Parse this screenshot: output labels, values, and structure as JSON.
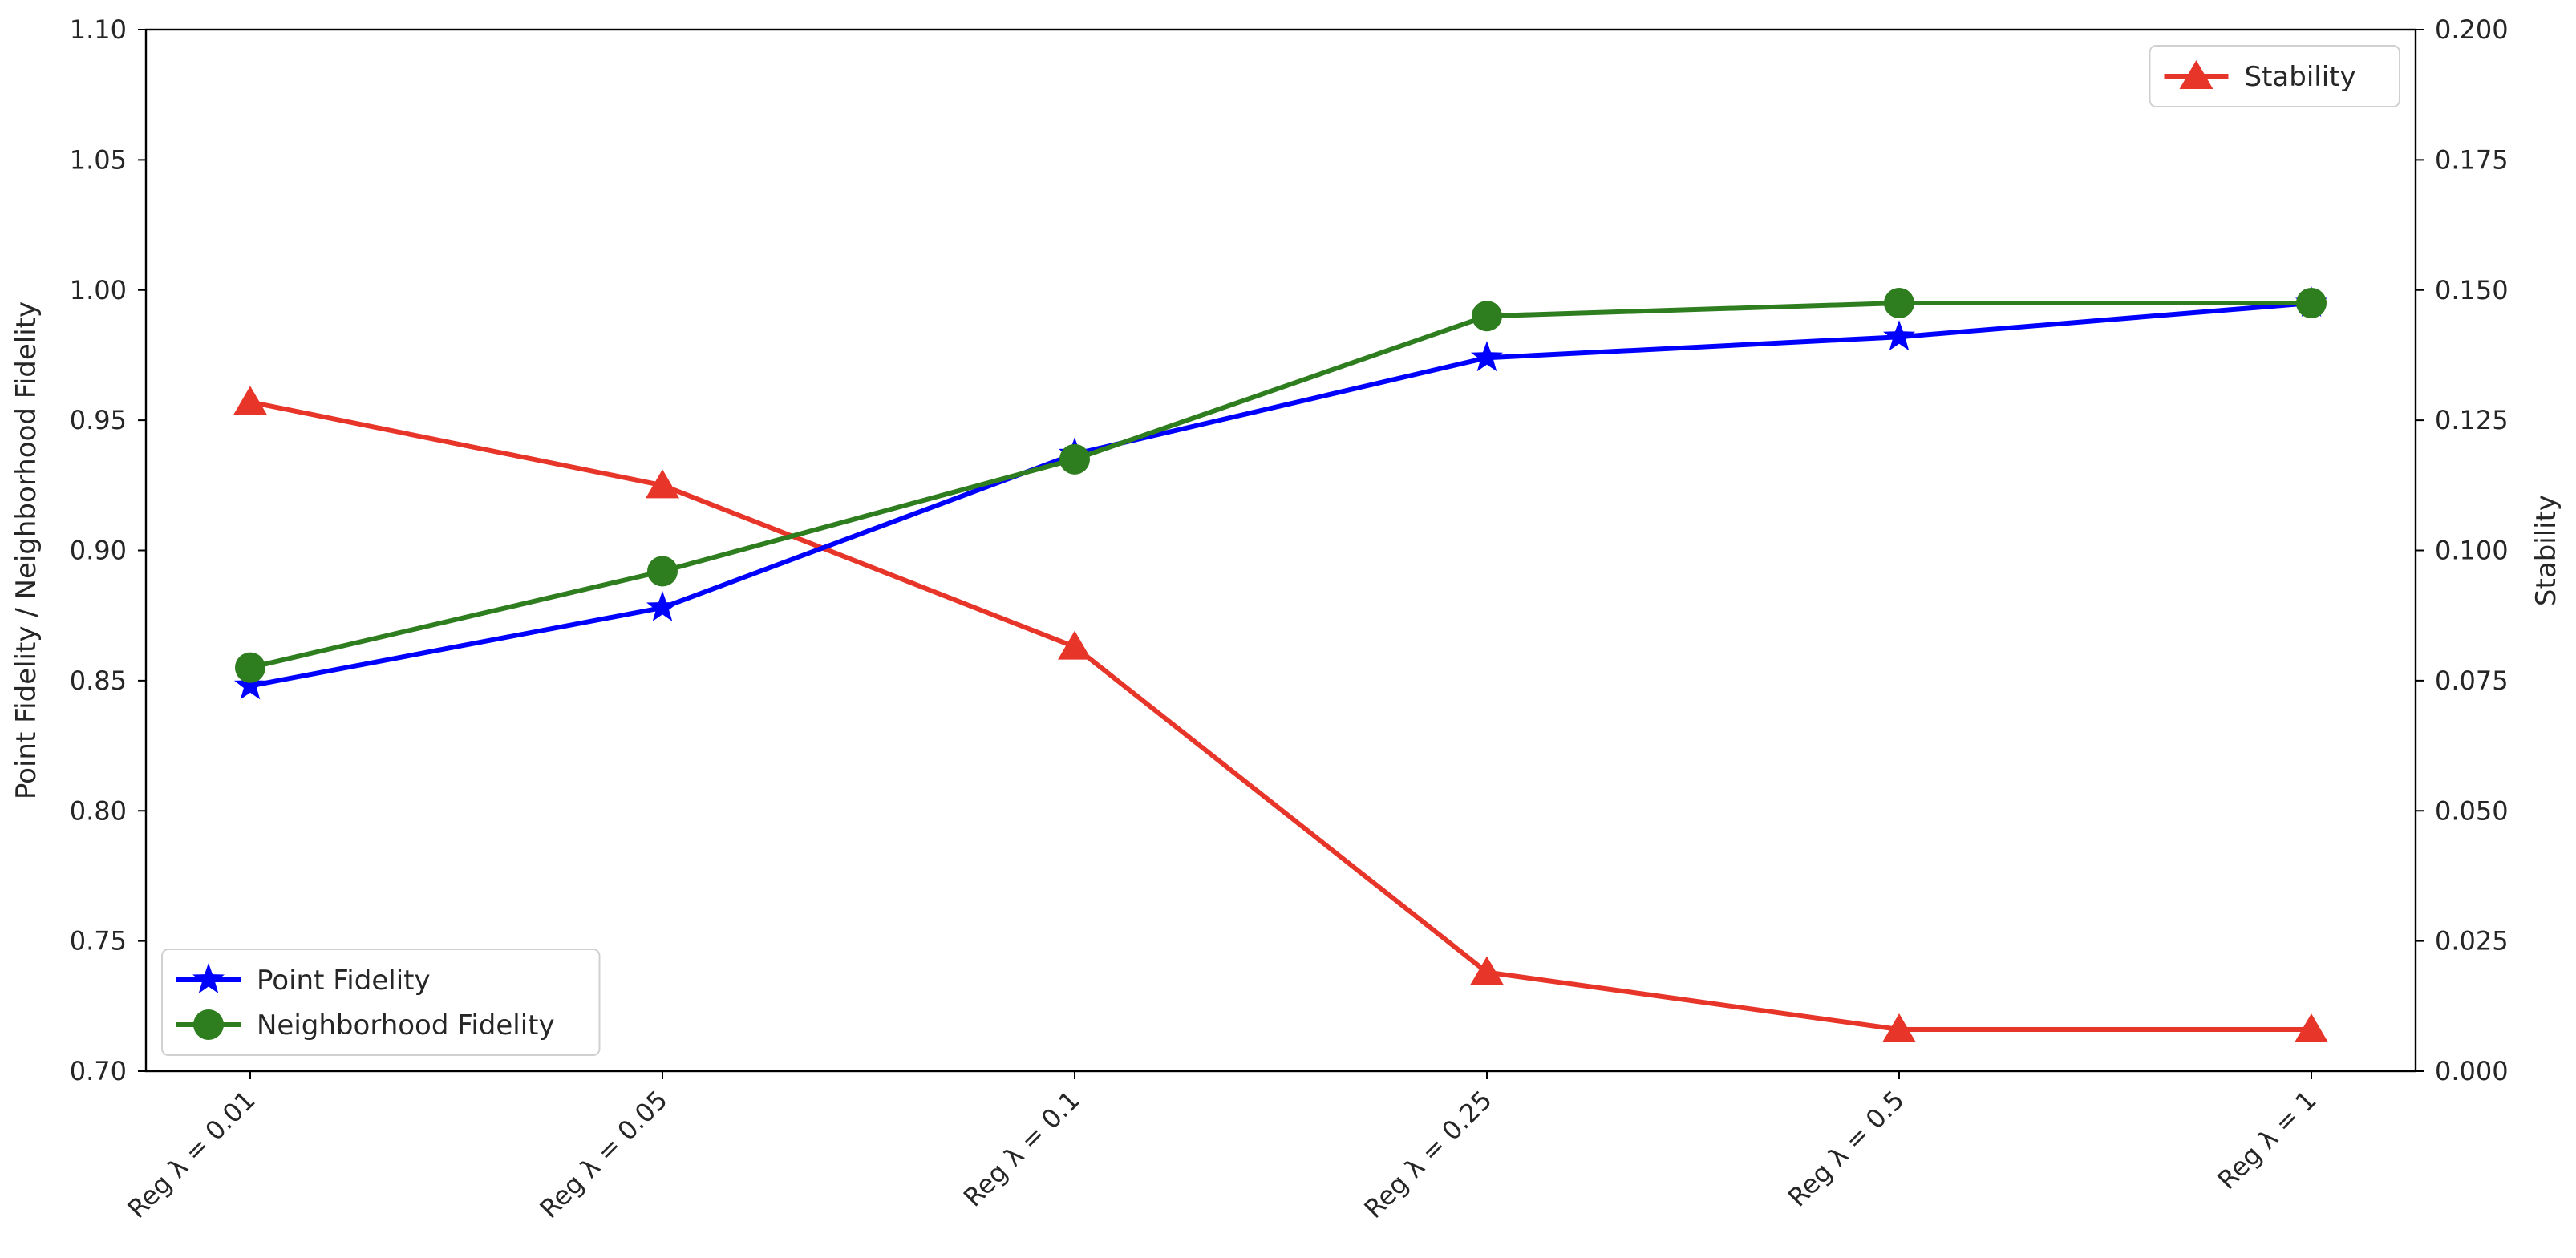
{
  "chart_data": {
    "type": "line",
    "categories": [
      "Reg λ = 0.01",
      "Reg λ = 0.05",
      "Reg λ = 0.1",
      "Reg λ = 0.25",
      "Reg λ = 0.5",
      "Reg λ = 1"
    ],
    "ylabel_left": "Point Fidelity / Neighborhood Fidelity",
    "ylabel_right": "Stability",
    "ylim_left": [
      0.7,
      1.1
    ],
    "ylim_right": [
      0.0,
      0.2
    ],
    "yticks_left": [
      "0.70",
      "0.75",
      "0.80",
      "0.85",
      "0.90",
      "0.95",
      "1.00",
      "1.05",
      "1.10"
    ],
    "yticks_right": [
      "0.000",
      "0.025",
      "0.050",
      "0.075",
      "0.100",
      "0.125",
      "0.150",
      "0.175",
      "0.200"
    ],
    "grid": false,
    "series": [
      {
        "name": "Point Fidelity",
        "axis": "left",
        "color": "#0000ff",
        "marker": "star",
        "values": [
          0.848,
          0.878,
          0.937,
          0.974,
          0.982,
          0.995
        ]
      },
      {
        "name": "Neighborhood Fidelity",
        "axis": "left",
        "color": "#2e7d1f",
        "marker": "circle",
        "values": [
          0.855,
          0.892,
          0.935,
          0.99,
          0.995,
          0.995
        ]
      },
      {
        "name": "Stability",
        "axis": "right",
        "color": "#e8352a",
        "marker": "triangle",
        "values": [
          0.1285,
          0.1125,
          0.0815,
          0.019,
          0.008,
          0.008
        ]
      }
    ],
    "legends": [
      {
        "placement": "lower-left",
        "entries": [
          "Point Fidelity",
          "Neighborhood Fidelity"
        ]
      },
      {
        "placement": "upper-right",
        "entries": [
          "Stability"
        ]
      }
    ]
  }
}
